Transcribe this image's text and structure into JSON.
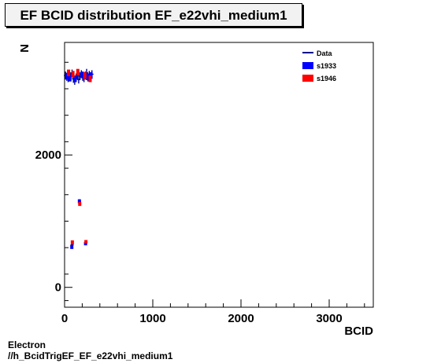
{
  "header": {
    "title": "EF BCID distribution EF_e22vhi_medium1"
  },
  "footer": {
    "line1": "Electron",
    "line2": "//h_BcidTrigEF_EF_e22vhi_medium1"
  },
  "chart_data": {
    "type": "scatter",
    "title": "EF BCID distribution EF_e22vhi_medium1",
    "xlabel": "BCID",
    "ylabel": "N",
    "xlim": [
      0,
      3500
    ],
    "ylim": [
      -300,
      3700
    ],
    "x_ticks": [
      0,
      1000,
      2000,
      3000
    ],
    "x_tick_labels": [
      "0",
      "1000",
      "2000",
      "3000"
    ],
    "y_ticks": [
      0,
      2000
    ],
    "y_tick_labels": [
      "0",
      "2000"
    ],
    "grid": false,
    "legend_position": "top-right",
    "colors": {
      "Data": "#00008b",
      "s1933": "#0000ff",
      "s1946": "#ff0000"
    },
    "series": [
      {
        "name": "Data",
        "style": "error-bars",
        "points": [
          {
            "x": 10,
            "y": 3200,
            "err": 60
          },
          {
            "x": 25,
            "y": 3180,
            "err": 60
          },
          {
            "x": 40,
            "y": 3160,
            "err": 60
          },
          {
            "x": 55,
            "y": 3210,
            "err": 60
          },
          {
            "x": 70,
            "y": 3190,
            "err": 60
          },
          {
            "x": 85,
            "y": 3230,
            "err": 60
          },
          {
            "x": 100,
            "y": 3150,
            "err": 60
          },
          {
            "x": 115,
            "y": 3120,
            "err": 60
          },
          {
            "x": 130,
            "y": 3170,
            "err": 60
          },
          {
            "x": 145,
            "y": 3200,
            "err": 60
          },
          {
            "x": 160,
            "y": 3140,
            "err": 60
          },
          {
            "x": 175,
            "y": 3190,
            "err": 60
          },
          {
            "x": 190,
            "y": 3220,
            "err": 60
          },
          {
            "x": 205,
            "y": 3180,
            "err": 60
          },
          {
            "x": 220,
            "y": 3160,
            "err": 60
          },
          {
            "x": 235,
            "y": 3200,
            "err": 60
          },
          {
            "x": 250,
            "y": 3240,
            "err": 60
          },
          {
            "x": 265,
            "y": 3170,
            "err": 60
          },
          {
            "x": 280,
            "y": 3210,
            "err": 60
          },
          {
            "x": 295,
            "y": 3190,
            "err": 60
          },
          {
            "x": 310,
            "y": 3220,
            "err": 60
          },
          {
            "x": 170,
            "y": 1290,
            "err": 40
          },
          {
            "x": 85,
            "y": 640,
            "err": 40
          },
          {
            "x": 240,
            "y": 670,
            "err": 30
          }
        ]
      },
      {
        "name": "s1933",
        "style": "band",
        "points": [
          {
            "x": 30,
            "y": 3190,
            "err": 50
          },
          {
            "x": 60,
            "y": 3160,
            "err": 50
          },
          {
            "x": 120,
            "y": 3150,
            "err": 50
          },
          {
            "x": 200,
            "y": 3210,
            "err": 50
          },
          {
            "x": 260,
            "y": 3180,
            "err": 50
          },
          {
            "x": 300,
            "y": 3200,
            "err": 50
          },
          {
            "x": 168,
            "y": 1300,
            "err": 30
          },
          {
            "x": 82,
            "y": 610,
            "err": 30
          },
          {
            "x": 238,
            "y": 660,
            "err": 25
          }
        ]
      },
      {
        "name": "s1946",
        "style": "band",
        "points": [
          {
            "x": 45,
            "y": 3240,
            "err": 50
          },
          {
            "x": 95,
            "y": 3220,
            "err": 50
          },
          {
            "x": 150,
            "y": 3250,
            "err": 50
          },
          {
            "x": 230,
            "y": 3200,
            "err": 50
          },
          {
            "x": 290,
            "y": 3150,
            "err": 50
          },
          {
            "x": 172,
            "y": 1260,
            "err": 30
          },
          {
            "x": 88,
            "y": 680,
            "err": 30
          },
          {
            "x": 242,
            "y": 690,
            "err": 25
          }
        ]
      }
    ]
  }
}
